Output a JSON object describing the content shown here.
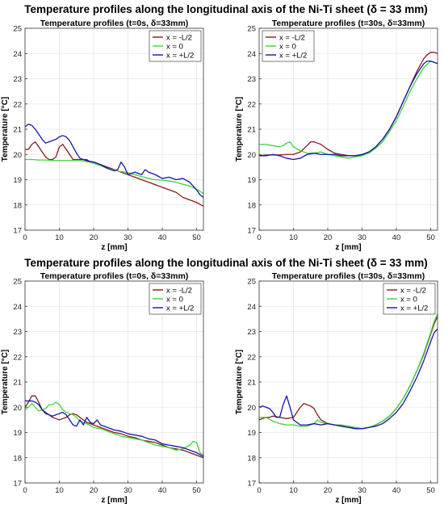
{
  "figure": {
    "titles": [
      "Temperature profiles along the longitudinal axis of the Ni-Ti sheet (δ = 33 mm)",
      "Temperature profiles along the longitudinal axis of the Ni-Ti sheet (δ = 33 mm)"
    ]
  },
  "colors": {
    "x_minus": "#8b1a1a",
    "x_zero": "#3bd43b",
    "x_plus": "#1414a8"
  },
  "chart_data": [
    {
      "type": "line",
      "title": "Temperature profiles (t=0s, δ=33mm)",
      "xlabel": "z [mm]",
      "ylabel": "Temperature [°C]",
      "xlim": [
        0,
        52
      ],
      "ylim": [
        17,
        25
      ],
      "xticks": [
        0,
        10,
        20,
        30,
        40,
        50
      ],
      "yticks": [
        17,
        18,
        19,
        20,
        21,
        22,
        23,
        24,
        25
      ],
      "grid": true,
      "legend": "top-right",
      "series": [
        {
          "name": "x = -L/2",
          "color": "#8b1a1a",
          "x": [
            0,
            1,
            2,
            3,
            4,
            5,
            6,
            7,
            8,
            9,
            10,
            11,
            12,
            13,
            14,
            15,
            16,
            17,
            18,
            19,
            20,
            22,
            24,
            26,
            28,
            30,
            32,
            34,
            36,
            38,
            40,
            42,
            44,
            46,
            48,
            50,
            52
          ],
          "y": [
            20.2,
            20.2,
            20.4,
            20.5,
            20.3,
            20.1,
            19.9,
            19.8,
            19.8,
            19.9,
            20.3,
            20.4,
            20.2,
            20.0,
            19.8,
            19.8,
            19.8,
            19.8,
            19.8,
            19.7,
            19.7,
            19.6,
            19.5,
            19.4,
            19.3,
            19.2,
            19.1,
            19.0,
            18.9,
            18.8,
            18.7,
            18.6,
            18.5,
            18.3,
            18.2,
            18.1,
            17.95
          ]
        },
        {
          "name": "x = 0",
          "color": "#3bd43b",
          "x": [
            0,
            2,
            4,
            6,
            8,
            10,
            12,
            14,
            16,
            18,
            20,
            22,
            24,
            26,
            28,
            30,
            32,
            34,
            36,
            38,
            40,
            42,
            44,
            46,
            48,
            50,
            52
          ],
          "y": [
            19.8,
            19.8,
            19.78,
            19.78,
            19.76,
            19.76,
            19.76,
            19.76,
            19.76,
            19.72,
            19.65,
            19.55,
            19.45,
            19.38,
            19.32,
            19.28,
            19.2,
            19.12,
            19.05,
            19.0,
            18.98,
            18.95,
            18.9,
            18.82,
            18.75,
            18.62,
            18.45
          ]
        },
        {
          "name": "x = +L/2",
          "color": "#1414a8",
          "x": [
            0,
            1,
            2,
            3,
            4,
            5,
            6,
            7,
            8,
            9,
            10,
            11,
            12,
            13,
            14,
            15,
            16,
            17,
            18,
            20,
            22,
            24,
            26,
            27,
            28,
            29,
            30,
            32,
            34,
            35,
            36,
            38,
            40,
            42,
            44,
            46,
            48,
            50,
            51,
            52
          ],
          "y": [
            21.1,
            21.2,
            21.15,
            21.0,
            20.8,
            20.6,
            20.45,
            20.5,
            20.55,
            20.6,
            20.7,
            20.75,
            20.7,
            20.55,
            20.3,
            20.05,
            19.85,
            19.8,
            19.75,
            19.7,
            19.6,
            19.45,
            19.35,
            19.4,
            19.7,
            19.5,
            19.2,
            19.3,
            19.2,
            19.4,
            19.3,
            19.2,
            19.05,
            19.1,
            19.0,
            19.05,
            18.9,
            18.6,
            18.4,
            18.3
          ]
        }
      ]
    },
    {
      "type": "line",
      "title": "Temperature profiles (t=30s, δ=33mm)",
      "xlabel": "z [mm]",
      "ylabel": "Temperature [°C]",
      "xlim": [
        0,
        52
      ],
      "ylim": [
        17,
        25
      ],
      "xticks": [
        0,
        10,
        20,
        30,
        40,
        50
      ],
      "yticks": [
        17,
        18,
        19,
        20,
        21,
        22,
        23,
        24,
        25
      ],
      "grid": true,
      "legend": "top-left",
      "series": [
        {
          "name": "x = -L/2",
          "color": "#8b1a1a",
          "x": [
            0,
            2,
            4,
            6,
            8,
            10,
            12,
            14,
            15,
            16,
            17,
            18,
            20,
            22,
            24,
            26,
            28,
            30,
            32,
            34,
            36,
            38,
            40,
            42,
            44,
            46,
            48,
            49,
            50,
            51,
            52
          ],
          "y": [
            19.95,
            19.98,
            19.98,
            19.98,
            20.0,
            20.0,
            20.1,
            20.35,
            20.5,
            20.5,
            20.45,
            20.4,
            20.2,
            20.05,
            20.0,
            19.95,
            19.95,
            19.98,
            20.1,
            20.3,
            20.6,
            21.0,
            21.5,
            22.1,
            22.7,
            23.3,
            23.8,
            23.95,
            24.05,
            24.05,
            24.0
          ]
        },
        {
          "name": "x = 0",
          "color": "#3bd43b",
          "x": [
            0,
            2,
            4,
            6,
            7,
            8,
            9,
            10,
            12,
            14,
            16,
            18,
            20,
            22,
            24,
            26,
            28,
            30,
            32,
            34,
            36,
            38,
            40,
            42,
            44,
            46,
            48,
            50,
            52
          ],
          "y": [
            20.4,
            20.4,
            20.35,
            20.3,
            20.35,
            20.45,
            20.5,
            20.3,
            20.15,
            20.05,
            20.05,
            20.1,
            20.0,
            19.95,
            19.9,
            19.85,
            19.9,
            19.95,
            20.05,
            20.25,
            20.5,
            20.9,
            21.35,
            21.9,
            22.5,
            23.0,
            23.45,
            23.7,
            23.6
          ]
        },
        {
          "name": "x = +L/2",
          "color": "#1414a8",
          "x": [
            0,
            2,
            4,
            6,
            8,
            10,
            12,
            14,
            16,
            18,
            20,
            22,
            24,
            26,
            28,
            30,
            32,
            34,
            36,
            38,
            40,
            42,
            44,
            46,
            48,
            49,
            50,
            51,
            52
          ],
          "y": [
            19.95,
            19.95,
            20.0,
            19.95,
            19.85,
            19.8,
            19.85,
            20.0,
            20.05,
            20.0,
            20.0,
            20.0,
            19.95,
            19.95,
            19.95,
            20.0,
            20.1,
            20.3,
            20.6,
            21.0,
            21.5,
            22.1,
            22.7,
            23.2,
            23.6,
            23.7,
            23.7,
            23.65,
            23.6
          ]
        }
      ]
    },
    {
      "type": "line",
      "title": "Temperature profiles (t=0s, δ=33mm)",
      "xlabel": "z [mm]",
      "ylabel": "Temperature [°C]",
      "xlim": [
        0,
        52
      ],
      "ylim": [
        17,
        25
      ],
      "xticks": [
        0,
        10,
        20,
        30,
        40,
        50
      ],
      "yticks": [
        17,
        18,
        19,
        20,
        21,
        22,
        23,
        24,
        25
      ],
      "grid": true,
      "legend": "top-right",
      "series": [
        {
          "name": "x = -L/2",
          "color": "#8b1a1a",
          "x": [
            0,
            1,
            2,
            3,
            4,
            5,
            6,
            7,
            8,
            9,
            10,
            11,
            12,
            13,
            14,
            15,
            16,
            17,
            18,
            20,
            22,
            24,
            26,
            28,
            30,
            32,
            34,
            36,
            38,
            40,
            42,
            44,
            46,
            48,
            50,
            52
          ],
          "y": [
            20.0,
            20.2,
            20.45,
            20.45,
            20.2,
            19.9,
            19.8,
            19.7,
            19.6,
            19.55,
            19.5,
            19.55,
            19.6,
            19.7,
            19.75,
            19.7,
            19.6,
            19.5,
            19.4,
            19.3,
            19.2,
            19.1,
            19.0,
            18.95,
            18.85,
            18.8,
            18.7,
            18.65,
            18.6,
            18.5,
            18.4,
            18.35,
            18.3,
            18.2,
            18.1,
            18.0
          ]
        },
        {
          "name": "x = 0",
          "color": "#3bd43b",
          "x": [
            0,
            1,
            2,
            3,
            4,
            5,
            6,
            7,
            8,
            9,
            10,
            11,
            12,
            13,
            14,
            15,
            16,
            18,
            20,
            22,
            24,
            26,
            28,
            30,
            32,
            34,
            36,
            38,
            40,
            42,
            44,
            46,
            48,
            49,
            50,
            51,
            52
          ],
          "y": [
            19.9,
            20.0,
            20.15,
            20.0,
            19.85,
            19.9,
            19.95,
            20.1,
            20.1,
            20.2,
            20.1,
            19.9,
            19.8,
            19.75,
            19.7,
            19.6,
            19.45,
            19.35,
            19.2,
            19.15,
            19.05,
            18.95,
            18.85,
            18.8,
            18.75,
            18.7,
            18.6,
            18.5,
            18.45,
            18.4,
            18.3,
            18.35,
            18.5,
            18.65,
            18.6,
            18.2,
            18.1
          ]
        },
        {
          "name": "x = +L/2",
          "color": "#1414a8",
          "x": [
            0,
            1,
            2,
            3,
            4,
            5,
            6,
            7,
            8,
            9,
            10,
            11,
            12,
            13,
            14,
            15,
            16,
            17,
            18,
            19,
            20,
            21,
            22,
            24,
            26,
            28,
            30,
            32,
            34,
            36,
            38,
            40,
            42,
            44,
            46,
            48,
            50,
            52
          ],
          "y": [
            20.25,
            20.25,
            20.25,
            20.2,
            20.1,
            19.9,
            19.75,
            19.7,
            19.65,
            19.7,
            19.75,
            19.8,
            19.7,
            19.5,
            19.3,
            19.25,
            19.5,
            19.3,
            19.6,
            19.4,
            19.35,
            19.5,
            19.3,
            19.2,
            19.1,
            19.05,
            18.95,
            18.9,
            18.85,
            18.75,
            18.7,
            18.55,
            18.5,
            18.45,
            18.4,
            18.3,
            18.2,
            18.05
          ]
        }
      ]
    },
    {
      "type": "line",
      "title": "Temperature profiles (t=30s, δ=33mm)",
      "xlabel": "z [mm]",
      "ylabel": "Temperature [°C]",
      "xlim": [
        0,
        52
      ],
      "ylim": [
        17,
        25
      ],
      "xticks": [
        0,
        10,
        20,
        30,
        40,
        50
      ],
      "yticks": [
        17,
        18,
        19,
        20,
        21,
        22,
        23,
        24,
        25
      ],
      "grid": true,
      "legend": "top-right",
      "series": [
        {
          "name": "x = -L/2",
          "color": "#8b1a1a",
          "x": [
            0,
            1,
            2,
            3,
            4,
            6,
            8,
            10,
            11,
            12,
            13,
            14,
            15,
            16,
            17,
            18,
            20,
            22,
            24,
            26,
            28,
            30,
            32,
            34,
            36,
            38,
            40,
            42,
            44,
            46,
            48,
            50,
            51,
            52
          ],
          "y": [
            19.5,
            19.55,
            19.6,
            19.6,
            19.65,
            19.6,
            19.55,
            19.6,
            19.8,
            20.0,
            20.15,
            20.1,
            20.05,
            19.95,
            19.7,
            19.5,
            19.35,
            19.3,
            19.25,
            19.2,
            19.2,
            19.15,
            19.2,
            19.3,
            19.45,
            19.65,
            19.95,
            20.35,
            20.85,
            21.45,
            22.1,
            22.9,
            23.3,
            23.6
          ]
        },
        {
          "name": "x = 0",
          "color": "#3bd43b",
          "x": [
            0,
            2,
            4,
            6,
            8,
            10,
            12,
            14,
            16,
            17,
            18,
            20,
            22,
            24,
            26,
            28,
            30,
            32,
            34,
            36,
            38,
            40,
            42,
            44,
            46,
            48,
            50,
            51,
            52
          ],
          "y": [
            19.6,
            19.6,
            19.45,
            19.35,
            19.3,
            19.3,
            19.25,
            19.25,
            19.35,
            19.5,
            19.4,
            19.35,
            19.3,
            19.3,
            19.25,
            19.2,
            19.15,
            19.2,
            19.3,
            19.45,
            19.65,
            19.95,
            20.35,
            20.85,
            21.45,
            22.15,
            22.95,
            23.4,
            23.7
          ]
        },
        {
          "name": "x = +L/2",
          "color": "#1414a8",
          "x": [
            0,
            1,
            2,
            3,
            4,
            5,
            6,
            7,
            8,
            9,
            10,
            12,
            14,
            16,
            18,
            20,
            22,
            24,
            26,
            28,
            30,
            32,
            34,
            36,
            38,
            40,
            42,
            44,
            46,
            48,
            50,
            51,
            52
          ],
          "y": [
            20.0,
            20.05,
            20.0,
            19.95,
            19.8,
            19.6,
            19.6,
            20.1,
            20.45,
            20.0,
            19.5,
            19.3,
            19.3,
            19.35,
            19.3,
            19.35,
            19.3,
            19.25,
            19.2,
            19.15,
            19.15,
            19.2,
            19.25,
            19.35,
            19.55,
            19.8,
            20.15,
            20.65,
            21.2,
            21.85,
            22.6,
            22.95,
            23.1
          ]
        }
      ]
    }
  ]
}
